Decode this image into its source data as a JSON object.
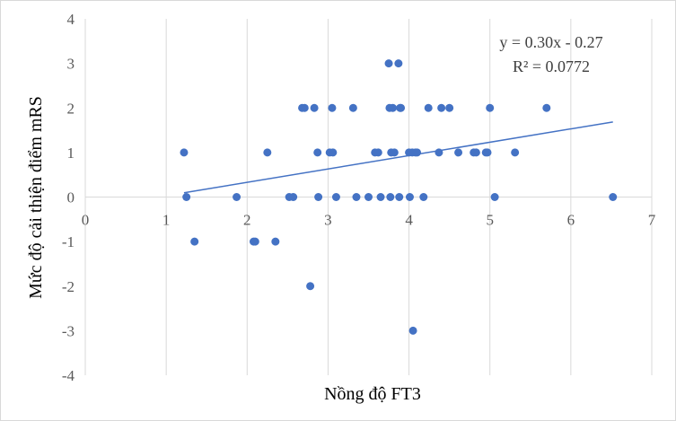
{
  "chart_data": {
    "type": "scatter",
    "xlabel": "Nồng độ FT3",
    "ylabel": "Mức độ cải thiện điểm mRS",
    "xlim": [
      0,
      7
    ],
    "ylim": [
      -4,
      4
    ],
    "x_ticks": [
      "0",
      "1",
      "2",
      "3",
      "4",
      "5",
      "6",
      "7"
    ],
    "y_ticks": [
      "4",
      "3",
      "2",
      "1",
      "0",
      "-1",
      "-2",
      "-3",
      "-4"
    ],
    "grid": "vertical",
    "legend": "none",
    "series": [
      {
        "color": "#4472C4",
        "points": [
          [
            1.22,
            1
          ],
          [
            1.25,
            0
          ],
          [
            1.35,
            -1
          ],
          [
            1.87,
            0
          ],
          [
            2.08,
            -1
          ],
          [
            2.1,
            -1
          ],
          [
            2.25,
            1
          ],
          [
            2.35,
            -1
          ],
          [
            2.52,
            0
          ],
          [
            2.57,
            0
          ],
          [
            2.68,
            2
          ],
          [
            2.71,
            2
          ],
          [
            2.78,
            -2
          ],
          [
            2.83,
            2
          ],
          [
            2.87,
            1
          ],
          [
            2.88,
            0
          ],
          [
            3.02,
            1
          ],
          [
            3.05,
            2
          ],
          [
            3.06,
            1
          ],
          [
            3.1,
            0
          ],
          [
            3.31,
            2
          ],
          [
            3.35,
            0
          ],
          [
            3.5,
            0
          ],
          [
            3.58,
            1
          ],
          [
            3.62,
            1
          ],
          [
            3.65,
            0
          ],
          [
            3.75,
            3
          ],
          [
            3.76,
            2
          ],
          [
            3.77,
            0
          ],
          [
            3.78,
            1
          ],
          [
            3.8,
            2
          ],
          [
            3.82,
            1
          ],
          [
            3.87,
            3
          ],
          [
            3.88,
            0
          ],
          [
            3.89,
            2
          ],
          [
            3.9,
            2
          ],
          [
            4.0,
            1
          ],
          [
            4.01,
            0
          ],
          [
            4.04,
            1
          ],
          [
            4.05,
            -3
          ],
          [
            4.08,
            1
          ],
          [
            4.1,
            1
          ],
          [
            4.18,
            0
          ],
          [
            4.24,
            2
          ],
          [
            4.37,
            1
          ],
          [
            4.4,
            2
          ],
          [
            4.5,
            2
          ],
          [
            4.61,
            1
          ],
          [
            4.8,
            1
          ],
          [
            4.83,
            1
          ],
          [
            4.95,
            1
          ],
          [
            4.97,
            1
          ],
          [
            5.0,
            2
          ],
          [
            5.06,
            0
          ],
          [
            5.31,
            1
          ],
          [
            5.7,
            2
          ],
          [
            6.52,
            0
          ]
        ]
      }
    ],
    "trendline": {
      "slope": 0.3,
      "intercept": -0.27,
      "x_range": [
        1.22,
        6.52
      ],
      "color": "#4472C4",
      "equation": "y = 0.30x - 0.27",
      "r2": "R² = 0.0772"
    }
  }
}
